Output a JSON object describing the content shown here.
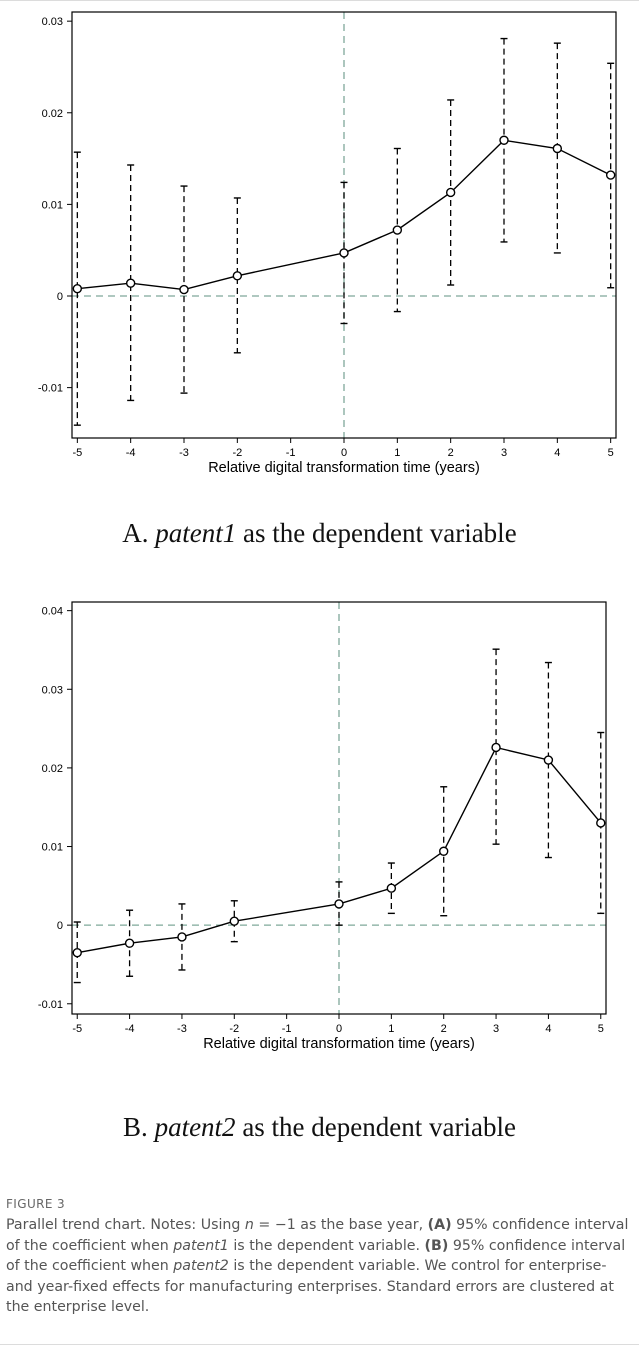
{
  "chart_data": [
    {
      "type": "line",
      "panel": "A",
      "xlabel": "Relative digital transformation time (years)",
      "ylabel": "",
      "x": [
        -5,
        -4,
        -3,
        -2,
        0,
        1,
        2,
        3,
        4,
        5
      ],
      "x_ticks": [
        -5,
        -4,
        -3,
        -2,
        -1,
        0,
        1,
        2,
        3,
        4,
        5
      ],
      "y_ticks": [
        -0.01,
        0,
        0.01,
        0.02,
        0.03
      ],
      "y_tick_labels": [
        "-0.01",
        "0",
        "0.01",
        "0.02",
        "0.03"
      ],
      "xlim": [
        -5.1,
        5.1
      ],
      "ylim": [
        -0.0155,
        0.031
      ],
      "series": [
        {
          "values": [
            0.0008,
            0.0014,
            0.0007,
            0.0022,
            0.0047,
            0.0072,
            0.0113,
            0.017,
            0.0161,
            0.0132
          ],
          "ci_low": [
            -0.0141,
            -0.0114,
            -0.0106,
            -0.0062,
            -0.003,
            -0.0017,
            0.0012,
            0.0059,
            0.0047,
            0.0009
          ],
          "ci_high": [
            0.0157,
            0.0143,
            0.012,
            0.0107,
            0.0124,
            0.0161,
            0.0214,
            0.0281,
            0.0276,
            0.0254
          ]
        }
      ],
      "reference_lines": {
        "x": 0,
        "y": 0,
        "color": "#7fa89a"
      },
      "subtitle": {
        "prefix": "A.",
        "var": "patent1",
        "suffix": "as the dependent variable"
      }
    },
    {
      "type": "line",
      "panel": "B",
      "xlabel": "Relative digital transformation time (years)",
      "ylabel": "",
      "x": [
        -5,
        -4,
        -3,
        -2,
        0,
        1,
        2,
        3,
        4,
        5
      ],
      "x_ticks": [
        -5,
        -4,
        -3,
        -2,
        -1,
        0,
        1,
        2,
        3,
        4,
        5
      ],
      "y_ticks": [
        -0.01,
        0,
        0.01,
        0.02,
        0.03,
        0.04
      ],
      "y_tick_labels": [
        "-0.01",
        "0",
        "0.01",
        "0.02",
        "0.03",
        "0.04"
      ],
      "xlim": [
        -5.1,
        5.1
      ],
      "ylim": [
        -0.0113,
        0.0411
      ],
      "series": [
        {
          "values": [
            -0.0035,
            -0.0023,
            -0.0015,
            0.0005,
            0.0027,
            0.0047,
            0.0094,
            0.0226,
            0.021,
            0.013
          ],
          "ci_low": [
            -0.0073,
            -0.0065,
            -0.0057,
            -0.0021,
            0.0,
            0.0015,
            0.0012,
            0.0103,
            0.0086,
            0.0015
          ],
          "ci_high": [
            0.0004,
            0.0019,
            0.0027,
            0.0031,
            0.0055,
            0.0079,
            0.0176,
            0.0351,
            0.0334,
            0.0245
          ]
        }
      ],
      "reference_lines": {
        "x": 0,
        "y": 0,
        "color": "#7fa89a"
      },
      "subtitle": {
        "prefix": "B.",
        "var": "patent2",
        "suffix": "as the dependent variable"
      }
    }
  ],
  "figure": {
    "label": "FIGURE 3",
    "caption": {
      "p1": "Parallel trend chart. Notes: Using ",
      "n": "n",
      "p2": " = −1 as the base year, ",
      "a": "(A)",
      "p3": " 95% confidence interval of the coefficient when ",
      "v1": "patent1",
      "p4": " is the dependent variable. ",
      "b": "(B)",
      "p5": " 95% confidence interval of the coefficient when ",
      "v2": "patent2",
      "p6": " is the dependent variable. We control for enterprise- and year-fixed effects for manufacturing enterprises. Standard errors are clustered at the enterprise level."
    }
  }
}
